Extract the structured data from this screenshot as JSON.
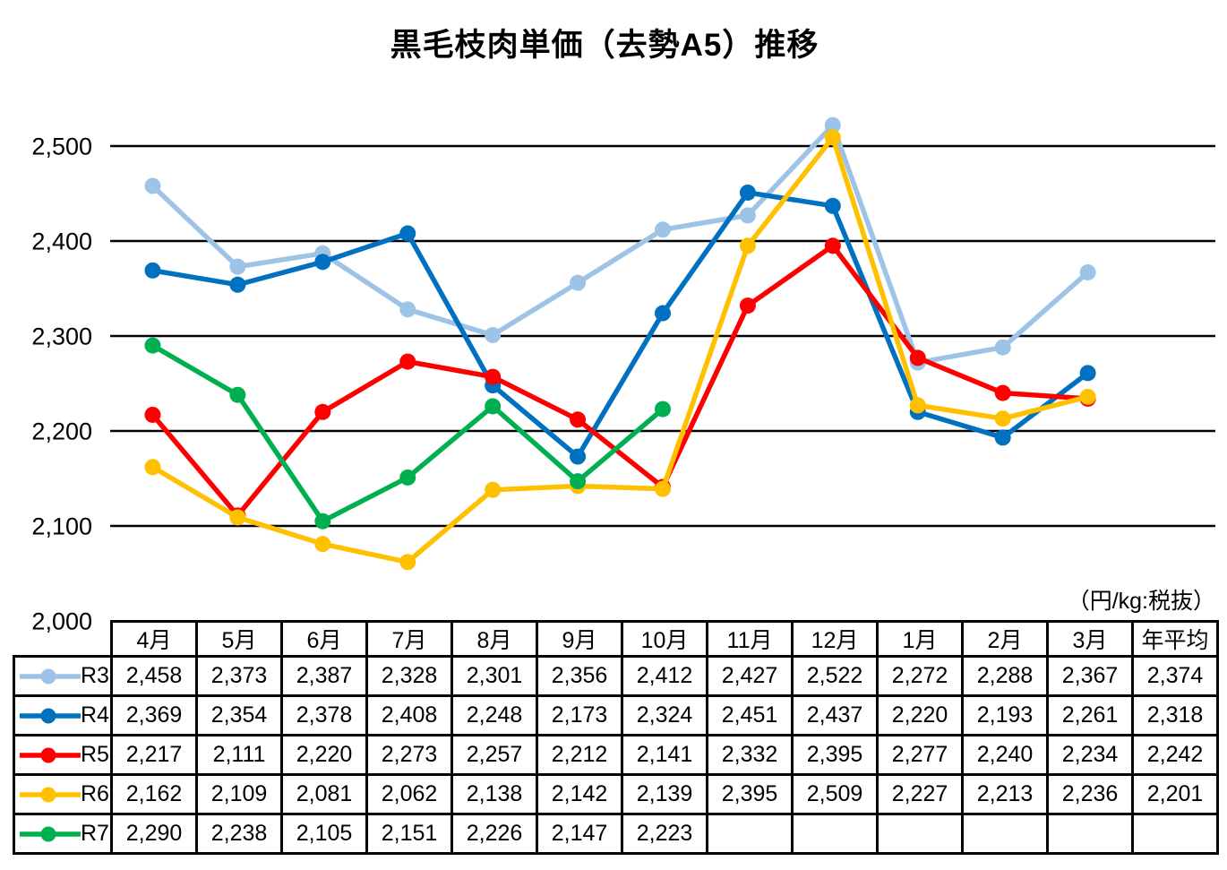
{
  "chart_data": {
    "type": "line",
    "title": "黒毛枝肉単価（去勢A5）推移",
    "unit_note": "（円/kg:税抜）",
    "categories": [
      "4月",
      "5月",
      "6月",
      "7月",
      "8月",
      "9月",
      "10月",
      "11月",
      "12月",
      "1月",
      "2月",
      "3月"
    ],
    "avg_column_header": "年平均",
    "ylim": [
      2000,
      2500
    ],
    "ytick_step": 100,
    "ytick_labels": [
      "2,000",
      "2,100",
      "2,200",
      "2,300",
      "2,400",
      "2,500"
    ],
    "grid": true,
    "legend_position": "table-left",
    "series": [
      {
        "name": "R3",
        "color": "#9DC3E6",
        "values": [
          2458,
          2373,
          2387,
          2328,
          2301,
          2356,
          2412,
          2427,
          2522,
          2272,
          2288,
          2367
        ],
        "annual_avg": 2374
      },
      {
        "name": "R4",
        "color": "#0070C0",
        "values": [
          2369,
          2354,
          2378,
          2408,
          2248,
          2173,
          2324,
          2451,
          2437,
          2220,
          2193,
          2261
        ],
        "annual_avg": 2318
      },
      {
        "name": "R5",
        "color": "#FF0000",
        "values": [
          2217,
          2111,
          2220,
          2273,
          2257,
          2212,
          2141,
          2332,
          2395,
          2277,
          2240,
          2234
        ],
        "annual_avg": 2242
      },
      {
        "name": "R6",
        "color": "#FFC000",
        "values": [
          2162,
          2109,
          2081,
          2062,
          2138,
          2142,
          2139,
          2395,
          2509,
          2227,
          2213,
          2236
        ],
        "annual_avg": 2201
      },
      {
        "name": "R7",
        "color": "#00B050",
        "values": [
          2290,
          2238,
          2105,
          2151,
          2226,
          2147,
          2223
        ],
        "annual_avg": null
      }
    ]
  }
}
